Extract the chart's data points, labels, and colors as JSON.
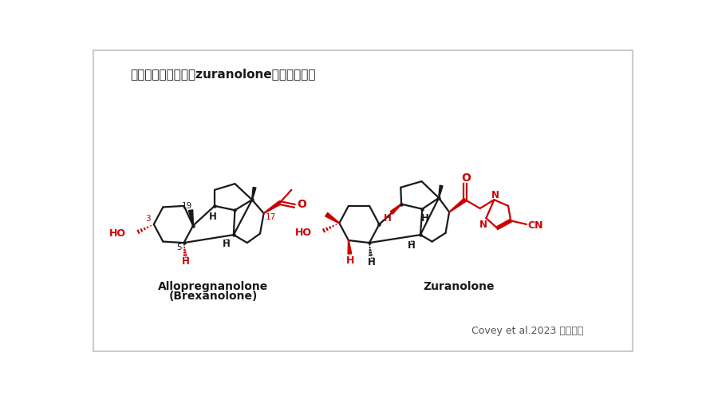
{
  "title": "アロプレグナロンとzuranoloneの化学構造式",
  "citation": "Covey et al.2023 より引用",
  "label1": "Allopregnanolone",
  "label1b": "(Brexanolone)",
  "label2": "Zuranolone",
  "bg_color": "#ffffff",
  "black": "#1a1a1a",
  "red": "#cc0000",
  "title_fontsize": 11,
  "label_fontsize": 10,
  "border_color": "#cccccc"
}
